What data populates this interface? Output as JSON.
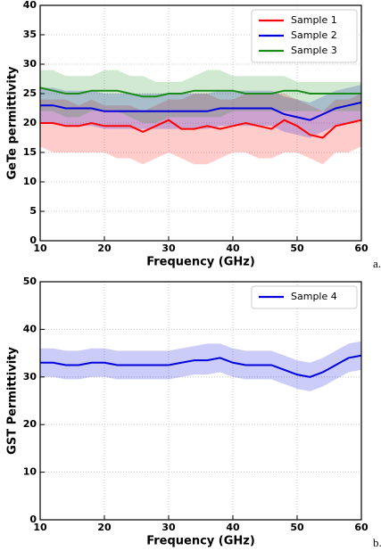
{
  "chart_data": [
    {
      "type": "line",
      "ylabel": "GeTe permittivity",
      "xlabel": "Frequency (GHz)",
      "annotation": "a.",
      "xlim": [
        10,
        60
      ],
      "xticks": [
        10,
        20,
        30,
        40,
        50,
        60
      ],
      "ylim": [
        0,
        40
      ],
      "yticks": [
        0,
        5,
        10,
        15,
        20,
        25,
        30,
        35,
        40
      ],
      "grid": true,
      "legend": "upper right",
      "x": [
        10,
        12,
        14,
        16,
        18,
        20,
        22,
        24,
        26,
        28,
        30,
        32,
        34,
        36,
        38,
        40,
        42,
        44,
        46,
        48,
        50,
        52,
        54,
        56,
        58,
        60
      ],
      "series": [
        {
          "name": "Sample 1",
          "color": "#ff0000",
          "values": [
            20,
            20,
            19.5,
            19.5,
            20,
            19.5,
            19.5,
            19.5,
            18.5,
            19.5,
            20.5,
            19,
            19,
            19.5,
            19,
            19.5,
            20,
            19.5,
            19,
            20.5,
            19.5,
            18,
            17.5,
            19.5,
            20,
            20.5
          ],
          "lower": [
            16,
            15,
            15,
            15,
            15,
            15,
            14,
            14,
            13,
            14,
            15,
            14,
            13,
            13,
            14,
            15,
            15,
            14,
            14,
            15,
            15,
            14,
            13,
            15,
            15,
            16
          ],
          "upper": [
            24,
            24,
            24,
            23,
            24,
            23,
            23,
            23,
            22,
            23,
            24,
            24,
            25,
            25,
            24,
            24,
            25,
            25,
            25,
            25,
            24,
            23,
            22,
            24,
            24,
            25
          ]
        },
        {
          "name": "Sample 2",
          "color": "#0000dd",
          "values": [
            23,
            23,
            22.5,
            22.5,
            22.5,
            22,
            22,
            22,
            22,
            22,
            22,
            22,
            22,
            22,
            22.5,
            22.5,
            22.5,
            22.5,
            22.5,
            21.5,
            21,
            20.5,
            21.5,
            22.5,
            23,
            23.5
          ],
          "lower": [
            20,
            20,
            19.5,
            19.5,
            19.5,
            19,
            19,
            19,
            19,
            19,
            19,
            19,
            19,
            19,
            19.5,
            19.5,
            19.5,
            19.5,
            19.5,
            18.5,
            18,
            17.5,
            18.5,
            19.5,
            20,
            20.5
          ],
          "upper": [
            26,
            26,
            25.5,
            25.5,
            25.5,
            25,
            25,
            25,
            25,
            25,
            25,
            25,
            25,
            25,
            25.5,
            25.5,
            25.5,
            25.5,
            25.5,
            24.5,
            24,
            23.5,
            24.5,
            25.5,
            26,
            26.5
          ]
        },
        {
          "name": "Sample 3",
          "color": "#1a8c1a",
          "values": [
            26,
            25.5,
            25,
            25,
            25.5,
            25.5,
            25.5,
            25,
            24.5,
            24.5,
            25,
            25,
            25.5,
            25.5,
            25.5,
            25.5,
            25,
            25,
            25,
            25.5,
            25.5,
            25,
            25,
            25,
            25,
            25
          ],
          "lower": [
            22,
            22,
            21,
            21,
            22,
            22,
            22,
            21,
            20,
            20,
            21,
            21,
            21,
            21,
            21,
            22,
            22,
            22,
            22,
            22,
            22,
            22,
            22,
            22,
            22,
            22
          ],
          "upper": [
            29,
            29,
            28,
            28,
            28,
            29,
            29,
            28,
            28,
            27,
            27,
            27,
            28,
            29,
            29,
            28,
            28,
            28,
            28,
            28,
            27,
            27,
            27,
            27,
            27,
            27
          ]
        }
      ]
    },
    {
      "type": "line",
      "ylabel": "GST Permittivity",
      "xlabel": "Frequency (GHz)",
      "annotation": "b.",
      "xlim": [
        10,
        60
      ],
      "xticks": [
        10,
        20,
        30,
        40,
        50,
        60
      ],
      "ylim": [
        0,
        50
      ],
      "yticks": [
        0,
        10,
        20,
        30,
        40,
        50
      ],
      "grid": true,
      "legend": "upper right",
      "x": [
        10,
        12,
        14,
        16,
        18,
        20,
        22,
        24,
        26,
        28,
        30,
        32,
        34,
        36,
        38,
        40,
        42,
        44,
        46,
        48,
        50,
        52,
        54,
        56,
        58,
        60
      ],
      "series": [
        {
          "name": "Sample 4",
          "color": "#0000dd",
          "values": [
            33,
            33,
            32.5,
            32.5,
            33,
            33,
            32.5,
            32.5,
            32.5,
            32.5,
            32.5,
            33,
            33.5,
            33.5,
            34,
            33,
            32.5,
            32.5,
            32.5,
            31.5,
            30.5,
            30,
            31,
            32.5,
            34,
            34.5
          ],
          "lower": [
            30,
            30,
            29.5,
            29.5,
            30,
            30,
            29.5,
            29.5,
            29.5,
            29.5,
            29.5,
            30,
            30.5,
            30.5,
            31,
            30,
            29.5,
            29.5,
            29.5,
            28.5,
            27.5,
            27,
            28,
            29.5,
            31,
            31.5
          ],
          "upper": [
            36,
            36,
            35.5,
            35.5,
            36,
            36,
            35.5,
            35.5,
            35.5,
            35.5,
            35.5,
            36,
            36.5,
            37,
            37,
            36,
            35.5,
            35.5,
            35.5,
            34.5,
            33.5,
            33,
            34,
            35.5,
            37,
            37.5
          ]
        }
      ]
    }
  ]
}
